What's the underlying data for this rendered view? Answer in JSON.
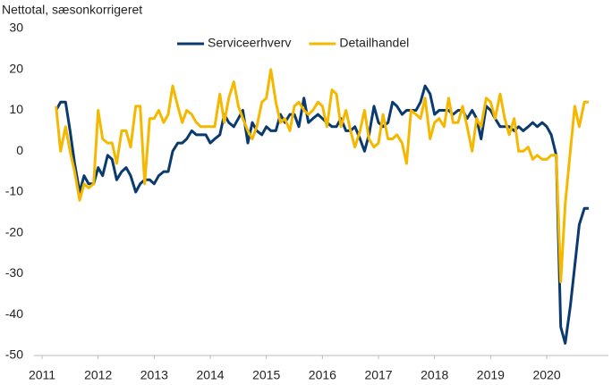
{
  "chart_data": {
    "type": "line",
    "y_axis_label": "Nettotal, sæsonkorrigeret",
    "x": [
      2011.25,
      2011.33,
      2011.42,
      2011.5,
      2011.58,
      2011.67,
      2011.75,
      2011.83,
      2011.92,
      2012,
      2012.08,
      2012.17,
      2012.25,
      2012.33,
      2012.42,
      2012.5,
      2012.58,
      2012.67,
      2012.75,
      2012.83,
      2012.92,
      2013,
      2013.08,
      2013.17,
      2013.25,
      2013.33,
      2013.42,
      2013.5,
      2013.58,
      2013.67,
      2013.75,
      2013.83,
      2013.92,
      2014,
      2014.08,
      2014.17,
      2014.25,
      2014.33,
      2014.42,
      2014.5,
      2014.58,
      2014.67,
      2014.75,
      2014.83,
      2014.92,
      2015,
      2015.08,
      2015.17,
      2015.25,
      2015.33,
      2015.42,
      2015.5,
      2015.58,
      2015.67,
      2015.75,
      2015.83,
      2015.92,
      2016,
      2016.08,
      2016.17,
      2016.25,
      2016.33,
      2016.42,
      2016.5,
      2016.58,
      2016.67,
      2016.75,
      2016.83,
      2016.92,
      2017,
      2017.08,
      2017.17,
      2017.25,
      2017.33,
      2017.42,
      2017.5,
      2017.58,
      2017.67,
      2017.75,
      2017.83,
      2017.92,
      2018,
      2018.08,
      2018.17,
      2018.25,
      2018.33,
      2018.42,
      2018.5,
      2018.58,
      2018.67,
      2018.75,
      2018.83,
      2018.92,
      2019,
      2019.08,
      2019.17,
      2019.25,
      2019.33,
      2019.42,
      2019.5,
      2019.58,
      2019.67,
      2019.75,
      2019.83,
      2019.92,
      2020,
      2020.08,
      2020.17,
      2020.25,
      2020.33,
      2020.42,
      2020.5,
      2020.58,
      2020.67,
      2020.75
    ],
    "series": [
      {
        "name": "Serviceerhverv",
        "color": "#0a3a6e",
        "values": [
          10,
          12,
          12,
          5,
          -3,
          -10,
          -6,
          -8,
          -8,
          -4,
          -6,
          -1,
          -2,
          -7,
          -5,
          -4,
          -6,
          -10,
          -8,
          -7,
          -7,
          -8,
          -6,
          -5,
          -5,
          0,
          2,
          2,
          3,
          5,
          4,
          4,
          4,
          2,
          3,
          4,
          9,
          7,
          6,
          8,
          10,
          2,
          7,
          5,
          4,
          6,
          5,
          5,
          9,
          7,
          9,
          9,
          6,
          13,
          7,
          8,
          9,
          8,
          7,
          6,
          6,
          8,
          5,
          5,
          6,
          3,
          0,
          4,
          11,
          7,
          6,
          7,
          12,
          11,
          9,
          10,
          10,
          10,
          12,
          16,
          14,
          9,
          10,
          10,
          10,
          9,
          10,
          10,
          8,
          10,
          8,
          3,
          11,
          10,
          8,
          6,
          6,
          6,
          5,
          6,
          5,
          6,
          7,
          6,
          7,
          6,
          4,
          -1,
          -43,
          -47,
          -38,
          -28,
          -18,
          -14,
          -14
        ]
      },
      {
        "name": "Detailhandel",
        "color": "#f5b800",
        "values": [
          11,
          0,
          6,
          0,
          -5,
          -12,
          -8,
          -9,
          -8,
          10,
          3,
          2,
          2,
          -3,
          5,
          5,
          1,
          11,
          11,
          -8,
          8,
          8,
          10,
          7,
          9,
          16,
          11,
          7,
          10,
          9,
          7,
          6,
          6,
          6,
          6,
          14,
          7,
          13,
          17,
          11,
          8,
          5,
          3,
          6,
          12,
          13,
          20,
          12,
          7,
          8,
          5,
          11,
          12,
          10,
          9,
          10,
          12,
          11,
          6,
          15,
          14,
          6,
          10,
          5,
          1,
          5,
          10,
          3,
          1,
          2,
          9,
          3,
          3,
          4,
          2,
          -3,
          10,
          9,
          8,
          13,
          3,
          7,
          8,
          6,
          13,
          7,
          7,
          11,
          6,
          0,
          8,
          6,
          13,
          12,
          8,
          14,
          8,
          4,
          8,
          0,
          0,
          1,
          -2,
          -1,
          -2,
          -2,
          -1,
          -1,
          -32,
          -13,
          0,
          11,
          6,
          12,
          12
        ]
      }
    ],
    "xlim": [
      2010.85,
      2021.1
    ],
    "xticks": [
      2011,
      2012,
      2013,
      2014,
      2015,
      2016,
      2017,
      2018,
      2019,
      2020
    ],
    "ylim": [
      -50,
      30
    ],
    "yticks": [
      -50,
      -40,
      -30,
      -20,
      -10,
      0,
      10,
      20,
      30
    ],
    "legend": "top"
  }
}
